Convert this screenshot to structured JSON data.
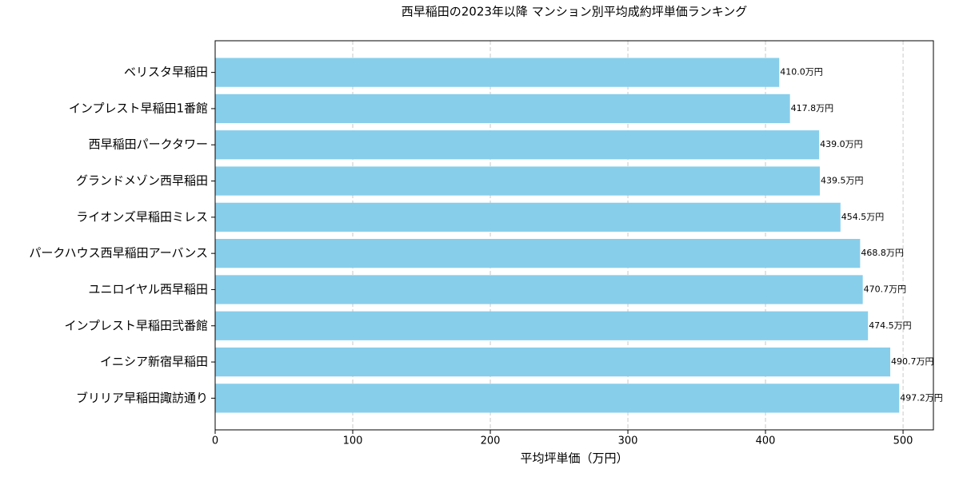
{
  "chart_data": {
    "type": "barh",
    "title": "西早稲田の2023年以降 マンション別平均成約坪単価ランキング",
    "xlabel": "平均坪単価（万円）",
    "categories": [
      "ベリスタ早稲田",
      "インプレスト早稲田1番館",
      "西早稲田パークタワー",
      "グランドメゾン西早稲田",
      "ライオンズ早稲田ミレス",
      "パークハウス西早稲田アーバンス",
      "ユニロイヤル西早稲田",
      "インプレスト早稲田弐番館",
      "イニシア新宿早稲田",
      "ブリリア早稲田諏訪通り"
    ],
    "values": [
      410.0,
      417.8,
      439.0,
      439.5,
      454.5,
      468.8,
      470.7,
      474.5,
      490.7,
      497.2
    ],
    "value_labels": [
      "410.0万円",
      "417.8万円",
      "439.0万円",
      "439.5万円",
      "454.5万円",
      "468.8万円",
      "470.7万円",
      "474.5万円",
      "490.7万円",
      "497.2万円"
    ],
    "color": "#87ceeb",
    "xlim": [
      0,
      522.06
    ],
    "xticks": [
      0,
      100,
      200,
      300,
      400,
      500
    ],
    "grid": true
  }
}
